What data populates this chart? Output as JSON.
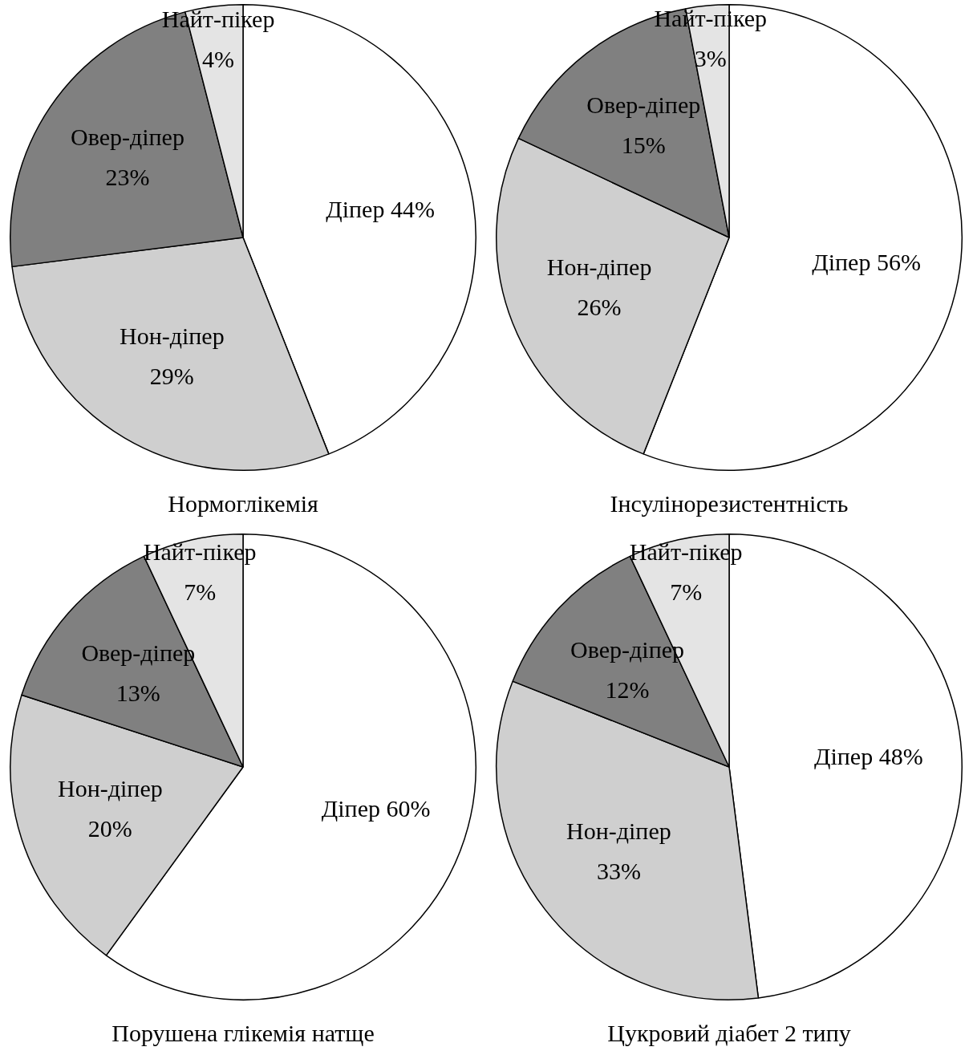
{
  "chart_data": [
    {
      "type": "pie",
      "title": "Нормоглікемія",
      "categories": [
        "Діпер",
        "Нон-діпер",
        "Овер-діпер",
        "Найт-пікер"
      ],
      "values": [
        44,
        29,
        23,
        4
      ],
      "colors": [
        "#ffffff",
        "#cfcfcf",
        "#808080",
        "#e4e4e4"
      ],
      "value_labels": [
        "44%",
        "29%",
        "23%",
        "4%"
      ]
    },
    {
      "type": "pie",
      "title": "Інсулінорезистентність",
      "categories": [
        "Діпер",
        "Нон-діпер",
        "Овер-діпер",
        "Найт-пікер"
      ],
      "values": [
        56,
        26,
        15,
        3
      ],
      "colors": [
        "#ffffff",
        "#cfcfcf",
        "#808080",
        "#e4e4e4"
      ],
      "value_labels": [
        "56%",
        "26%",
        "15%",
        "3%"
      ]
    },
    {
      "type": "pie",
      "title": "Порушена глікемія натще",
      "categories": [
        "Діпер",
        "Нон-діпер",
        "Овер-діпер",
        "Найт-пікер"
      ],
      "values": [
        60,
        20,
        13,
        7
      ],
      "colors": [
        "#ffffff",
        "#cfcfcf",
        "#808080",
        "#e4e4e4"
      ],
      "value_labels": [
        "60%",
        "20%",
        "13%",
        "7%"
      ]
    },
    {
      "type": "pie",
      "title": "Цукровий діабет 2 типу",
      "categories": [
        "Діпер",
        "Нон-діпер",
        "Овер-діпер",
        "Найт-пікер"
      ],
      "values": [
        48,
        33,
        12,
        7
      ],
      "colors": [
        "#ffffff",
        "#cfcfcf",
        "#808080",
        "#e4e4e4"
      ],
      "value_labels": [
        "48%",
        "33%",
        "12%",
        "7%"
      ]
    }
  ]
}
